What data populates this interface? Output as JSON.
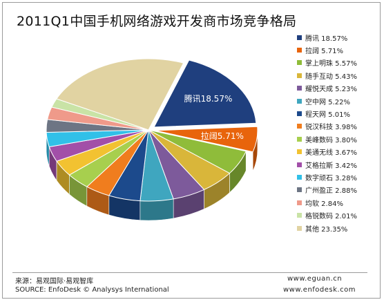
{
  "chart_data": {
    "type": "pie",
    "title": "2011Q1中国手机网络游戏开发商市场竞争格局",
    "slices": [
      {
        "name": "腾讯",
        "value": 18.57,
        "color": "#1f3f7e",
        "label": "腾讯18.57%",
        "exploded": true
      },
      {
        "name": "拉阔",
        "value": 5.71,
        "color": "#e8640c",
        "label": "拉阔5.71%",
        "exploded": true
      },
      {
        "name": "掌上明珠",
        "value": 5.57,
        "color": "#8fbc3a",
        "label": ""
      },
      {
        "name": "随手互动",
        "value": 5.43,
        "color": "#d9b63a",
        "label": ""
      },
      {
        "name": "耀悦天成",
        "value": 5.23,
        "color": "#7d5a9b",
        "label": ""
      },
      {
        "name": "空中网",
        "value": 5.22,
        "color": "#3fa6bf",
        "label": ""
      },
      {
        "name": "程天网",
        "value": 5.01,
        "color": "#1c4a8c",
        "label": ""
      },
      {
        "name": "锐汉科技",
        "value": 3.98,
        "color": "#f07d1e",
        "label": ""
      },
      {
        "name": "美峰数码",
        "value": 3.8,
        "color": "#a7cf4e",
        "label": ""
      },
      {
        "name": "美通无线",
        "value": 3.67,
        "color": "#f2c231",
        "label": ""
      },
      {
        "name": "艾格拉斯",
        "value": 3.42,
        "color": "#a24fa8",
        "label": ""
      },
      {
        "name": "数字顽石",
        "value": 3.28,
        "color": "#31c0e8",
        "label": ""
      },
      {
        "name": "广州盈正",
        "value": 2.88,
        "color": "#6d7584",
        "label": ""
      },
      {
        "name": "均软",
        "value": 2.84,
        "color": "#ef9a8a",
        "label": ""
      },
      {
        "name": "格锐数码",
        "value": 2.01,
        "color": "#c9e3a6",
        "label": ""
      },
      {
        "name": "其他",
        "value": 23.35,
        "color": "#e1d3a2",
        "label": ""
      }
    ],
    "legend_placement": "right"
  },
  "source": {
    "cn": "来源：易观国际·易观智库",
    "en": "SOURCE: EnfoDesk © Analysys International"
  },
  "urls": {
    "line1": "www.eguan.cn",
    "line2": "www.enfodesk.com"
  }
}
